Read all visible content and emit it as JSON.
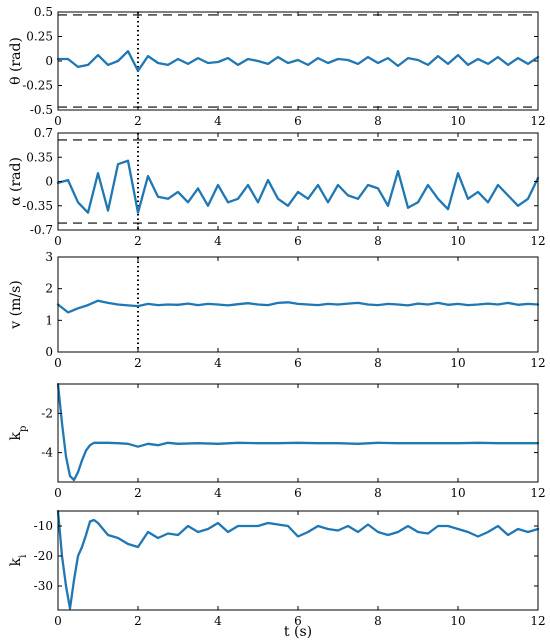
{
  "colors": {
    "series": "#1f77b4",
    "axis": "#000000",
    "limits": "#000000"
  },
  "xlabel": "t (s)",
  "chart_data": [
    {
      "type": "line",
      "ylabel": "θ (rad)",
      "ylim": [
        -0.5,
        0.5
      ],
      "yticks": [
        -0.5,
        -0.25,
        0,
        0.25,
        0.5
      ],
      "ytick_labels": [
        "-0.5",
        "-0.25",
        "0",
        "0.25",
        "0.5"
      ],
      "xlim": [
        0,
        12
      ],
      "xticks": [
        0,
        2,
        4,
        6,
        8,
        10,
        12
      ],
      "xtick_labels": [
        "0",
        "2",
        "4",
        "6",
        "8",
        "10",
        "12"
      ],
      "hlines": [
        0.47,
        -0.47
      ],
      "vline": 2,
      "x": [
        0,
        0.25,
        0.5,
        0.75,
        1,
        1.25,
        1.5,
        1.75,
        2,
        2.25,
        2.5,
        2.75,
        3,
        3.25,
        3.5,
        3.75,
        4,
        4.25,
        4.5,
        4.75,
        5,
        5.25,
        5.5,
        5.75,
        6,
        6.25,
        6.5,
        6.75,
        7,
        7.25,
        7.5,
        7.75,
        8,
        8.25,
        8.5,
        8.75,
        9,
        9.25,
        9.5,
        9.75,
        10,
        10.25,
        10.5,
        10.75,
        11,
        11.25,
        11.5,
        11.75,
        12
      ],
      "y": [
        0.02,
        0.02,
        -0.06,
        -0.04,
        0.06,
        -0.04,
        0.0,
        0.1,
        -0.1,
        0.05,
        -0.02,
        -0.04,
        0.02,
        -0.03,
        0.03,
        -0.02,
        -0.01,
        0.03,
        -0.04,
        0.02,
        0.0,
        -0.03,
        0.04,
        -0.02,
        0.01,
        -0.04,
        0.03,
        -0.02,
        0.02,
        0.01,
        -0.03,
        0.04,
        -0.02,
        0.03,
        -0.05,
        0.03,
        0.01,
        -0.04,
        0.05,
        -0.03,
        0.06,
        -0.04,
        0.02,
        -0.03,
        0.04,
        -0.04,
        0.03,
        -0.03,
        0.04
      ]
    },
    {
      "type": "line",
      "ylabel": "α (rad)",
      "ylim": [
        -0.7,
        0.7
      ],
      "yticks": [
        -0.7,
        -0.35,
        0,
        0.35,
        0.7
      ],
      "ytick_labels": [
        "-0.7",
        "-0.35",
        "0",
        "0.35",
        "0.7"
      ],
      "xlim": [
        0,
        12
      ],
      "xticks": [
        0,
        2,
        4,
        6,
        8,
        10,
        12
      ],
      "xtick_labels": [
        "0",
        "2",
        "4",
        "6",
        "8",
        "10",
        "12"
      ],
      "hlines": [
        0.6,
        -0.6
      ],
      "vline": 2,
      "x": [
        0,
        0.25,
        0.5,
        0.75,
        1,
        1.25,
        1.5,
        1.75,
        2,
        2.25,
        2.5,
        2.75,
        3,
        3.25,
        3.5,
        3.75,
        4,
        4.25,
        4.5,
        4.75,
        5,
        5.25,
        5.5,
        5.75,
        6,
        6.25,
        6.5,
        6.75,
        7,
        7.25,
        7.5,
        7.75,
        8,
        8.25,
        8.5,
        8.75,
        9,
        9.25,
        9.5,
        9.75,
        10,
        10.25,
        10.5,
        10.75,
        11,
        11.25,
        11.5,
        11.75,
        12
      ],
      "y": [
        -0.02,
        0.02,
        -0.3,
        -0.45,
        0.12,
        -0.42,
        0.25,
        0.3,
        -0.45,
        0.08,
        -0.22,
        -0.25,
        -0.15,
        -0.3,
        -0.1,
        -0.35,
        -0.05,
        -0.3,
        -0.25,
        -0.05,
        -0.3,
        0.02,
        -0.25,
        -0.35,
        -0.15,
        -0.25,
        -0.05,
        -0.3,
        -0.05,
        -0.2,
        -0.25,
        -0.05,
        -0.1,
        -0.35,
        0.15,
        -0.38,
        -0.3,
        -0.05,
        -0.25,
        -0.4,
        0.12,
        -0.25,
        -0.15,
        -0.3,
        -0.05,
        -0.2,
        -0.35,
        -0.25,
        0.05
      ]
    },
    {
      "type": "line",
      "ylabel": "v (m/s)",
      "ylim": [
        0,
        3
      ],
      "yticks": [
        0,
        1,
        2,
        3
      ],
      "ytick_labels": [
        "0",
        "1",
        "2",
        "3"
      ],
      "xlim": [
        0,
        12
      ],
      "xticks": [
        0,
        2,
        4,
        6,
        8,
        10,
        12
      ],
      "xtick_labels": [
        "0",
        "2",
        "4",
        "6",
        "8",
        "10",
        "12"
      ],
      "hlines": [],
      "vline": 2,
      "x": [
        0,
        0.25,
        0.5,
        0.75,
        1,
        1.25,
        1.5,
        1.75,
        2,
        2.25,
        2.5,
        2.75,
        3,
        3.25,
        3.5,
        3.75,
        4,
        4.25,
        4.5,
        4.75,
        5,
        5.25,
        5.5,
        5.75,
        6,
        6.25,
        6.5,
        6.75,
        7,
        7.25,
        7.5,
        7.75,
        8,
        8.25,
        8.5,
        8.75,
        9,
        9.25,
        9.5,
        9.75,
        10,
        10.25,
        10.5,
        10.75,
        11,
        11.25,
        11.5,
        11.75,
        12
      ],
      "y": [
        1.5,
        1.25,
        1.38,
        1.48,
        1.62,
        1.55,
        1.5,
        1.47,
        1.45,
        1.52,
        1.48,
        1.5,
        1.49,
        1.53,
        1.48,
        1.52,
        1.5,
        1.47,
        1.51,
        1.54,
        1.5,
        1.48,
        1.55,
        1.57,
        1.52,
        1.5,
        1.48,
        1.52,
        1.5,
        1.53,
        1.55,
        1.5,
        1.48,
        1.52,
        1.5,
        1.47,
        1.53,
        1.5,
        1.55,
        1.49,
        1.52,
        1.48,
        1.5,
        1.53,
        1.5,
        1.55,
        1.49,
        1.52,
        1.5
      ]
    },
    {
      "type": "line",
      "ylabel": "k_p",
      "ylim": [
        -5.5,
        -0.5
      ],
      "yticks": [
        -4,
        -2
      ],
      "ytick_labels": [
        "-4",
        "-2"
      ],
      "xlim": [
        0,
        12
      ],
      "xticks": [
        0,
        2,
        4,
        6,
        8,
        10,
        12
      ],
      "xtick_labels": [
        "0",
        "2",
        "4",
        "6",
        "8",
        "10",
        "12"
      ],
      "hlines": [],
      "vline": null,
      "x": [
        0,
        0.1,
        0.2,
        0.3,
        0.4,
        0.5,
        0.6,
        0.7,
        0.8,
        0.9,
        1.0,
        1.25,
        1.5,
        1.75,
        2.0,
        2.25,
        2.5,
        2.75,
        3,
        3.5,
        4,
        4.5,
        5,
        5.5,
        6,
        6.5,
        7,
        7.5,
        8,
        8.5,
        9,
        9.5,
        10,
        10.5,
        11,
        11.5,
        12
      ],
      "y": [
        -0.5,
        -2.5,
        -4.2,
        -5.2,
        -5.4,
        -5.0,
        -4.4,
        -3.9,
        -3.62,
        -3.5,
        -3.5,
        -3.5,
        -3.52,
        -3.55,
        -3.7,
        -3.55,
        -3.62,
        -3.5,
        -3.55,
        -3.52,
        -3.55,
        -3.5,
        -3.52,
        -3.52,
        -3.5,
        -3.52,
        -3.52,
        -3.55,
        -3.5,
        -3.52,
        -3.52,
        -3.52,
        -3.52,
        -3.5,
        -3.52,
        -3.52,
        -3.52
      ]
    },
    {
      "type": "line",
      "ylabel": "k_i",
      "ylim": [
        -38,
        -5
      ],
      "yticks": [
        -30,
        -20,
        -10
      ],
      "ytick_labels": [
        "-30",
        "-20",
        "-10"
      ],
      "xlim": [
        0,
        12
      ],
      "xticks": [
        0,
        2,
        4,
        6,
        8,
        10,
        12
      ],
      "xtick_labels": [
        "0",
        "2",
        "4",
        "6",
        "8",
        "10",
        "12"
      ],
      "hlines": [],
      "vline": null,
      "x": [
        0,
        0.1,
        0.2,
        0.3,
        0.4,
        0.5,
        0.6,
        0.7,
        0.8,
        0.9,
        1.0,
        1.25,
        1.5,
        1.75,
        2.0,
        2.25,
        2.5,
        2.75,
        3,
        3.25,
        3.5,
        3.75,
        4,
        4.25,
        4.5,
        4.75,
        5,
        5.25,
        5.5,
        5.75,
        6,
        6.25,
        6.5,
        6.75,
        7,
        7.25,
        7.5,
        7.75,
        8,
        8.25,
        8.5,
        8.75,
        9,
        9.25,
        9.5,
        9.75,
        10,
        10.25,
        10.5,
        10.75,
        11,
        11.25,
        11.5,
        11.75,
        12
      ],
      "y": [
        -5,
        -20,
        -30,
        -37.5,
        -28,
        -20,
        -17,
        -13,
        -8.5,
        -8,
        -9,
        -13,
        -14,
        -16,
        -17,
        -12,
        -14,
        -12.5,
        -13,
        -10,
        -12,
        -11,
        -9,
        -12,
        -10,
        -10,
        -10,
        -9,
        -9.5,
        -10,
        -13.5,
        -12,
        -10,
        -11,
        -11.5,
        -10,
        -12,
        -9.5,
        -12,
        -13,
        -12,
        -10,
        -12,
        -12.5,
        -10,
        -10,
        -11,
        -12,
        -13.5,
        -12,
        -10,
        -13,
        -11,
        -12,
        -11
      ]
    }
  ]
}
